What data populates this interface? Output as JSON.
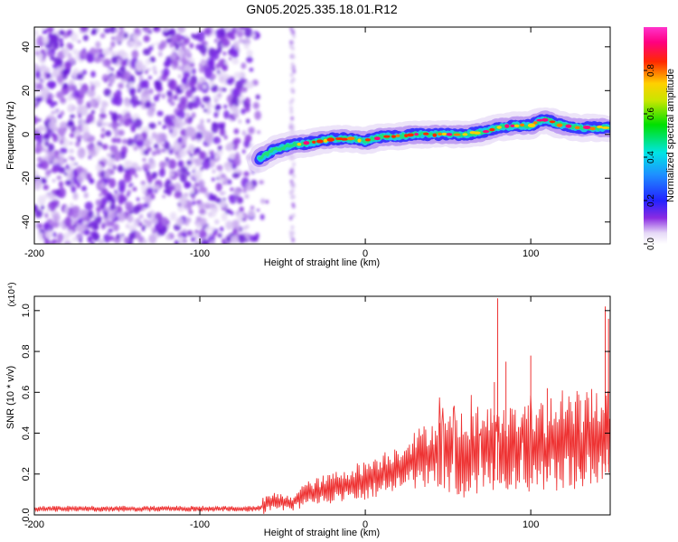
{
  "title": "GN05.2025.335.18.01.R12",
  "chart_data": [
    {
      "type": "heatmap",
      "xlabel": "Height of straight line (km)",
      "ylabel": "Frequency (Hz)",
      "xlim": [
        -200,
        148
      ],
      "ylim": [
        -50,
        49
      ],
      "x_ticks": [
        -200,
        -100,
        0,
        100
      ],
      "y_ticks": [
        -40,
        -20,
        0,
        20,
        40
      ],
      "colorbar": {
        "label": "Normalized spectral amplitude",
        "range": [
          0,
          1
        ],
        "ticks": [
          "0.0",
          "0.2",
          "0.4",
          "0.6",
          "0.8"
        ],
        "colormap": "rainbow-white-to-magenta"
      },
      "noise_region_x": [
        -200,
        -58
      ],
      "noise_streak_x": -44,
      "ridge": {
        "x": [
          -64,
          -55,
          -45,
          -35,
          -20,
          -10,
          0,
          10,
          20,
          30,
          40,
          50,
          60,
          70,
          80,
          90,
          100,
          105,
          110,
          115,
          120,
          130,
          140,
          148
        ],
        "frequency_hz": [
          -11,
          -7,
          -5,
          -4,
          -2,
          -2,
          -3,
          -1,
          -1,
          0,
          0,
          0,
          0,
          1,
          3,
          4,
          4,
          6,
          7,
          5,
          4,
          3,
          3,
          3
        ]
      }
    },
    {
      "type": "line",
      "xlabel": "Height of straight line (km)",
      "ylabel": "SNR (10 * v/v)",
      "y_multiplier": "(x10⁴)",
      "xlim": [
        -200,
        148
      ],
      "ylim": [
        0,
        1.07
      ],
      "x_ticks": [
        -200,
        -100,
        0,
        100
      ],
      "y_ticks": [
        "0.0",
        "0.2",
        "0.4",
        "0.6",
        "0.8",
        "1.0"
      ],
      "color": "#ee3333",
      "series": [
        {
          "x": [
            -200,
            -180,
            -160,
            -140,
            -120,
            -100,
            -80,
            -65,
            -55,
            -45,
            -40,
            -30,
            -20,
            -10,
            0,
            10,
            20,
            30,
            40,
            50,
            60,
            70,
            80,
            90,
            100,
            110,
            120,
            130,
            140,
            148
          ],
          "values": [
            0.03,
            0.03,
            0.03,
            0.03,
            0.03,
            0.03,
            0.03,
            0.03,
            0.07,
            0.05,
            0.09,
            0.11,
            0.13,
            0.15,
            0.17,
            0.2,
            0.23,
            0.27,
            0.3,
            0.3,
            0.3,
            0.31,
            0.32,
            0.33,
            0.33,
            0.33,
            0.35,
            0.36,
            0.38,
            0.4
          ],
          "spikes": [
            {
              "x": 45,
              "y": 0.45
            },
            {
              "x": 78,
              "y": 0.65
            },
            {
              "x": 80,
              "y": 1.06
            },
            {
              "x": 85,
              "y": 0.75
            },
            {
              "x": 100,
              "y": 0.78
            },
            {
              "x": 110,
              "y": 0.62
            },
            {
              "x": 130,
              "y": 0.56
            },
            {
              "x": 145,
              "y": 1.02
            },
            {
              "x": 147,
              "y": 0.96
            }
          ]
        }
      ]
    }
  ]
}
